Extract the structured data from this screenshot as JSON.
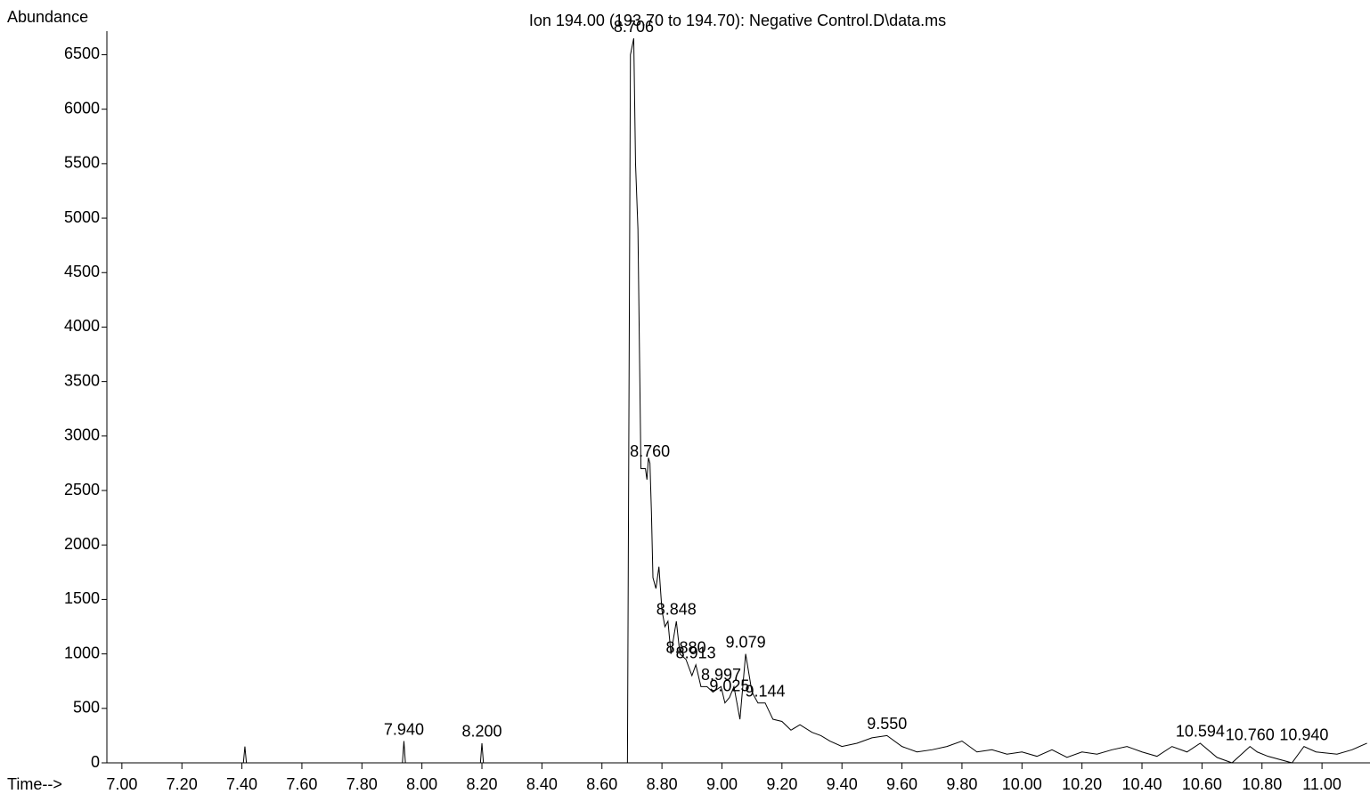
{
  "chart_data": {
    "type": "line",
    "title": "Ion 194.00 (193.70 to 194.70): Negative Control.D\\data.ms",
    "y_label": "Abundance",
    "x_label": "Time-->",
    "xlim": [
      6.95,
      11.16
    ],
    "ylim": [
      0,
      6700
    ],
    "xticks": [
      {
        "value": 7,
        "label": "7.00"
      },
      {
        "value": 7.2,
        "label": "7.20"
      },
      {
        "value": 7.4,
        "label": "7.40"
      },
      {
        "value": 7.6,
        "label": "7.60"
      },
      {
        "value": 7.8,
        "label": "7.80"
      },
      {
        "value": 8,
        "label": "8.00"
      },
      {
        "value": 8.2,
        "label": "8.20"
      },
      {
        "value": 8.4,
        "label": "8.40"
      },
      {
        "value": 8.6,
        "label": "8.60"
      },
      {
        "value": 8.8,
        "label": "8.80"
      },
      {
        "value": 9,
        "label": "9.00"
      },
      {
        "value": 9.2,
        "label": "9.20"
      },
      {
        "value": 9.4,
        "label": "9.40"
      },
      {
        "value": 9.6,
        "label": "9.60"
      },
      {
        "value": 9.8,
        "label": "9.80"
      },
      {
        "value": 10,
        "label": "10.00"
      },
      {
        "value": 10.2,
        "label": "10.20"
      },
      {
        "value": 10.4,
        "label": "10.40"
      },
      {
        "value": 10.6,
        "label": "10.60"
      },
      {
        "value": 10.8,
        "label": "10.80"
      },
      {
        "value": 11,
        "label": "11.00"
      }
    ],
    "yticks": [
      0,
      500,
      1000,
      1500,
      2000,
      2500,
      3000,
      3500,
      4000,
      4500,
      5000,
      5500,
      6000,
      6500
    ],
    "color": "#000000",
    "x": [
      6.95,
      7.405,
      7.41,
      7.415,
      7.935,
      7.94,
      7.945,
      8.195,
      8.2,
      8.205,
      8.685,
      8.695,
      8.706,
      8.712,
      8.72,
      8.73,
      8.745,
      8.75,
      8.755,
      8.76,
      8.765,
      8.77,
      8.78,
      8.79,
      8.8,
      8.81,
      8.82,
      8.83,
      8.848,
      8.86,
      8.88,
      8.9,
      8.913,
      8.93,
      8.95,
      8.97,
      8.997,
      9.01,
      9.025,
      9.04,
      9.06,
      9.079,
      9.1,
      9.12,
      9.144,
      9.17,
      9.2,
      9.23,
      9.26,
      9.3,
      9.33,
      9.36,
      9.4,
      9.45,
      9.5,
      9.55,
      9.6,
      9.65,
      9.7,
      9.75,
      9.8,
      9.85,
      9.9,
      9.95,
      10.0,
      10.05,
      10.1,
      10.15,
      10.2,
      10.25,
      10.3,
      10.35,
      10.4,
      10.45,
      10.5,
      10.55,
      10.594,
      10.65,
      10.7,
      10.76,
      10.784,
      10.82,
      10.9,
      10.94,
      10.98,
      11.05,
      11.1,
      11.15
    ],
    "values": [
      0,
      0,
      150,
      0,
      0,
      200,
      0,
      0,
      180,
      0,
      0,
      6500,
      6650,
      5500,
      4900,
      2700,
      2700,
      2600,
      2800,
      2750,
      2300,
      1700,
      1600,
      1800,
      1400,
      1250,
      1300,
      1000,
      1300,
      1000,
      950,
      800,
      900,
      700,
      700,
      650,
      700,
      550,
      600,
      700,
      400,
      1000,
      650,
      550,
      550,
      400,
      380,
      300,
      350,
      280,
      250,
      200,
      150,
      180,
      230,
      250,
      150,
      100,
      120,
      150,
      200,
      100,
      120,
      80,
      100,
      60,
      120,
      50,
      100,
      80,
      120,
      150,
      100,
      60,
      150,
      100,
      180,
      50,
      0,
      150,
      100,
      60,
      0,
      150,
      100,
      80,
      120,
      180
    ],
    "annotations": [
      {
        "text": "7.940",
        "x": 7.94,
        "y": 200
      },
      {
        "text": "8.200",
        "x": 8.2,
        "y": 180
      },
      {
        "text": "8.706",
        "x": 8.706,
        "y": 6650
      },
      {
        "text": "8.760",
        "x": 8.76,
        "y": 2750
      },
      {
        "text": "8.848",
        "x": 8.848,
        "y": 1300
      },
      {
        "text": "8.880",
        "x": 8.88,
        "y": 950
      },
      {
        "text": "8.913",
        "x": 8.913,
        "y": 900
      },
      {
        "text": "8.997",
        "x": 8.997,
        "y": 700
      },
      {
        "text": "9.025",
        "x": 9.025,
        "y": 600
      },
      {
        "text": "9.079",
        "x": 9.079,
        "y": 1000
      },
      {
        "text": "9.144",
        "x": 9.144,
        "y": 550
      },
      {
        "text": "9.550",
        "x": 9.55,
        "y": 250
      },
      {
        "text": "10.594",
        "x": 10.594,
        "y": 180
      },
      {
        "text": "10.760",
        "x": 10.76,
        "y": 150
      },
      {
        "text": "10.940",
        "x": 10.94,
        "y": 150
      }
    ]
  }
}
